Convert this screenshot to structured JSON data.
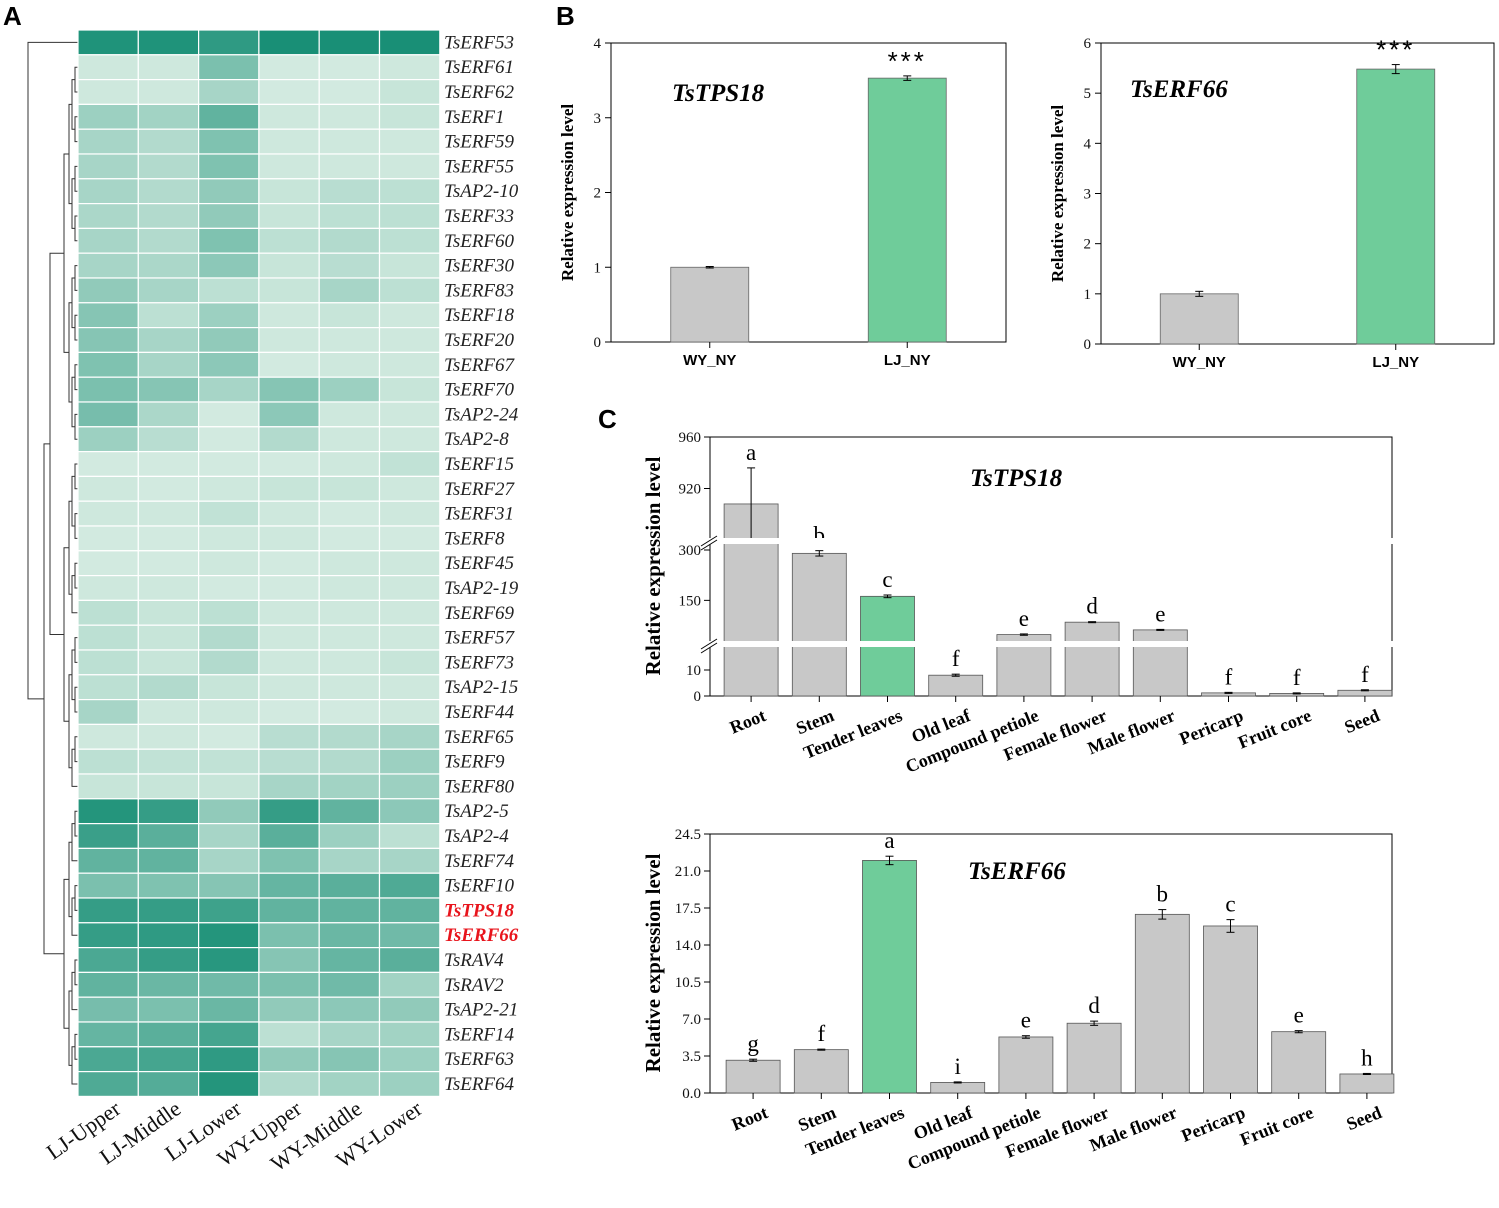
{
  "panel_labels": {
    "a": "A",
    "b": "B",
    "c": "C"
  },
  "colors": {
    "gray": "#c8c8c8",
    "green": "#6fcc9a",
    "highlight_text": "#e8141c"
  },
  "chart_data": [
    {
      "type": "heatmap",
      "panel": "A",
      "columns": [
        "LJ-Upper",
        "LJ-Middle",
        "LJ-Lower",
        "WY-Upper",
        "WY-Middle",
        "WY-Lower"
      ],
      "highlighted_rows": [
        "TsTPS18",
        "TsERF66"
      ],
      "rows": [
        {
          "gene": "TsERF53",
          "values": [
            0.92,
            0.92,
            0.85,
            0.95,
            0.95,
            0.95
          ]
        },
        {
          "gene": "TsERF61",
          "values": [
            0.12,
            0.12,
            0.5,
            0.1,
            0.1,
            0.12
          ]
        },
        {
          "gene": "TsERF62",
          "values": [
            0.12,
            0.12,
            0.3,
            0.1,
            0.1,
            0.15
          ]
        },
        {
          "gene": "TsERF1",
          "values": [
            0.35,
            0.32,
            0.62,
            0.12,
            0.12,
            0.15
          ]
        },
        {
          "gene": "TsERF59",
          "values": [
            0.3,
            0.25,
            0.48,
            0.12,
            0.12,
            0.12
          ]
        },
        {
          "gene": "TsERF55",
          "values": [
            0.3,
            0.25,
            0.48,
            0.12,
            0.12,
            0.12
          ]
        },
        {
          "gene": "TsAP2-10",
          "values": [
            0.3,
            0.25,
            0.4,
            0.15,
            0.22,
            0.2
          ]
        },
        {
          "gene": "TsERF33",
          "values": [
            0.28,
            0.25,
            0.4,
            0.15,
            0.2,
            0.2
          ]
        },
        {
          "gene": "TsERF60",
          "values": [
            0.3,
            0.25,
            0.48,
            0.2,
            0.25,
            0.2
          ]
        },
        {
          "gene": "TsERF30",
          "values": [
            0.3,
            0.28,
            0.42,
            0.15,
            0.22,
            0.15
          ]
        },
        {
          "gene": "TsERF83",
          "values": [
            0.4,
            0.3,
            0.2,
            0.15,
            0.3,
            0.2
          ]
        },
        {
          "gene": "TsERF18",
          "values": [
            0.45,
            0.2,
            0.35,
            0.12,
            0.15,
            0.12
          ]
        },
        {
          "gene": "TsERF20",
          "values": [
            0.45,
            0.3,
            0.4,
            0.12,
            0.12,
            0.12
          ]
        },
        {
          "gene": "TsERF67",
          "values": [
            0.48,
            0.3,
            0.42,
            0.1,
            0.12,
            0.12
          ]
        },
        {
          "gene": "TsERF70",
          "values": [
            0.5,
            0.45,
            0.3,
            0.45,
            0.35,
            0.15
          ]
        },
        {
          "gene": "TsAP2-24",
          "values": [
            0.52,
            0.28,
            0.1,
            0.42,
            0.12,
            0.12
          ]
        },
        {
          "gene": "TsAP2-8",
          "values": [
            0.35,
            0.22,
            0.1,
            0.25,
            0.12,
            0.12
          ]
        },
        {
          "gene": "TsERF15",
          "values": [
            0.1,
            0.1,
            0.1,
            0.1,
            0.12,
            0.18
          ]
        },
        {
          "gene": "TsERF27",
          "values": [
            0.12,
            0.1,
            0.12,
            0.15,
            0.15,
            0.12
          ]
        },
        {
          "gene": "TsERF31",
          "values": [
            0.12,
            0.12,
            0.18,
            0.12,
            0.1,
            0.12
          ]
        },
        {
          "gene": "TsERF8",
          "values": [
            0.1,
            0.1,
            0.12,
            0.12,
            0.1,
            0.1
          ]
        },
        {
          "gene": "TsERF45",
          "values": [
            0.1,
            0.1,
            0.12,
            0.1,
            0.12,
            0.12
          ]
        },
        {
          "gene": "TsAP2-19",
          "values": [
            0.12,
            0.12,
            0.1,
            0.1,
            0.12,
            0.12
          ]
        },
        {
          "gene": "TsERF69",
          "values": [
            0.2,
            0.15,
            0.2,
            0.12,
            0.12,
            0.12
          ]
        },
        {
          "gene": "TsERF57",
          "values": [
            0.2,
            0.15,
            0.25,
            0.12,
            0.12,
            0.12
          ]
        },
        {
          "gene": "TsERF73",
          "values": [
            0.2,
            0.15,
            0.25,
            0.12,
            0.12,
            0.15
          ]
        },
        {
          "gene": "TsAP2-15",
          "values": [
            0.2,
            0.25,
            0.15,
            0.12,
            0.12,
            0.12
          ]
        },
        {
          "gene": "TsERF44",
          "values": [
            0.3,
            0.12,
            0.12,
            0.1,
            0.1,
            0.12
          ]
        },
        {
          "gene": "TsERF65",
          "values": [
            0.12,
            0.12,
            0.1,
            0.22,
            0.25,
            0.3
          ]
        },
        {
          "gene": "TsERF9",
          "values": [
            0.2,
            0.18,
            0.18,
            0.22,
            0.25,
            0.35
          ]
        },
        {
          "gene": "TsERF80",
          "values": [
            0.15,
            0.15,
            0.15,
            0.3,
            0.32,
            0.35
          ]
        },
        {
          "gene": "TsAP2-5",
          "values": [
            0.9,
            0.82,
            0.4,
            0.82,
            0.62,
            0.42
          ]
        },
        {
          "gene": "TsAP2-4",
          "values": [
            0.8,
            0.65,
            0.3,
            0.65,
            0.35,
            0.2
          ]
        },
        {
          "gene": "TsERF74",
          "values": [
            0.62,
            0.62,
            0.3,
            0.48,
            0.3,
            0.3
          ]
        },
        {
          "gene": "TsERF10",
          "values": [
            0.5,
            0.48,
            0.45,
            0.6,
            0.65,
            0.7
          ]
        },
        {
          "gene": "TsTPS18",
          "values": [
            0.82,
            0.82,
            0.78,
            0.62,
            0.62,
            0.62
          ]
        },
        {
          "gene": "TsERF66",
          "values": [
            0.82,
            0.85,
            0.9,
            0.5,
            0.58,
            0.55
          ]
        },
        {
          "gene": "TsRAV4",
          "values": [
            0.72,
            0.82,
            0.88,
            0.45,
            0.6,
            0.65
          ]
        },
        {
          "gene": "TsRAV2",
          "values": [
            0.62,
            0.58,
            0.55,
            0.5,
            0.55,
            0.32
          ]
        },
        {
          "gene": "TsAP2-21",
          "values": [
            0.52,
            0.5,
            0.58,
            0.4,
            0.42,
            0.4
          ]
        },
        {
          "gene": "TsERF14",
          "values": [
            0.6,
            0.65,
            0.75,
            0.2,
            0.3,
            0.32
          ]
        },
        {
          "gene": "TsERF63",
          "values": [
            0.72,
            0.75,
            0.85,
            0.4,
            0.45,
            0.35
          ]
        },
        {
          "gene": "TsERF64",
          "values": [
            0.7,
            0.68,
            0.9,
            0.25,
            0.32,
            0.35
          ]
        }
      ]
    },
    {
      "type": "bar",
      "panel": "B",
      "title": "TsTPS18",
      "categories": [
        "WY_NY",
        "LJ_NY"
      ],
      "values": [
        1.0,
        3.53
      ],
      "errors": [
        0.01,
        0.03
      ],
      "significance": [
        "",
        "***"
      ],
      "ylabel": "Relative expression level",
      "ylim": [
        0,
        4
      ],
      "yticks": [
        "0",
        "1",
        "2",
        "3",
        "4"
      ]
    },
    {
      "type": "bar",
      "panel": "B",
      "title": "TsERF66",
      "categories": [
        "WY_NY",
        "LJ_NY"
      ],
      "values": [
        1.0,
        5.48
      ],
      "errors": [
        0.05,
        0.09
      ],
      "significance": [
        "",
        "***"
      ],
      "ylabel": "Relative expression level",
      "ylim": [
        0,
        6
      ],
      "yticks": [
        "0",
        "1",
        "2",
        "3",
        "4",
        "5",
        "6"
      ]
    },
    {
      "type": "bar",
      "panel": "C",
      "title": "TsTPS18",
      "categories": [
        "Root",
        "Stem",
        "Tender leaves",
        "Old leaf",
        "Compound petiole",
        "Female flower",
        "Male flower",
        "Pericarp",
        "Fruit core",
        "Seed"
      ],
      "values": [
        908,
        290,
        162,
        8,
        48,
        85,
        62,
        1.2,
        1.0,
        2.2
      ],
      "errors": [
        28,
        8,
        4,
        0.4,
        2,
        1.5,
        1.5,
        0.2,
        0.2,
        0.2
      ],
      "letters": [
        "a",
        "b",
        "c",
        "f",
        "e",
        "d",
        "e",
        "f",
        "f",
        "f"
      ],
      "ylabel": "Relative expression level",
      "yticks": [
        "0",
        "10",
        "150",
        "300",
        "920",
        "960"
      ],
      "axis_breaks": [
        [
          10,
          20
        ],
        [
          300,
          880
        ]
      ]
    },
    {
      "type": "bar",
      "panel": "C",
      "title": "TsERF66",
      "categories": [
        "Root",
        "Stem",
        "Tender leaves",
        "Old leaf",
        "Compound petiole",
        "Female flower",
        "Male flower",
        "Pericarp",
        "Fruit core",
        "Seed"
      ],
      "values": [
        3.1,
        4.1,
        22.0,
        1.0,
        5.3,
        6.6,
        16.9,
        15.8,
        5.8,
        1.8
      ],
      "errors": [
        0.1,
        0.05,
        0.4,
        0.05,
        0.12,
        0.2,
        0.45,
        0.6,
        0.1,
        0.05
      ],
      "letters": [
        "g",
        "f",
        "a",
        "i",
        "e",
        "d",
        "b",
        "c",
        "e",
        "h"
      ],
      "ylabel": "Relative expression level",
      "ylim": [
        0,
        24.5
      ],
      "yticks": [
        "0.0",
        "3.5",
        "7.0",
        "10.5",
        "14.0",
        "17.5",
        "21.0",
        "24.5"
      ]
    }
  ]
}
